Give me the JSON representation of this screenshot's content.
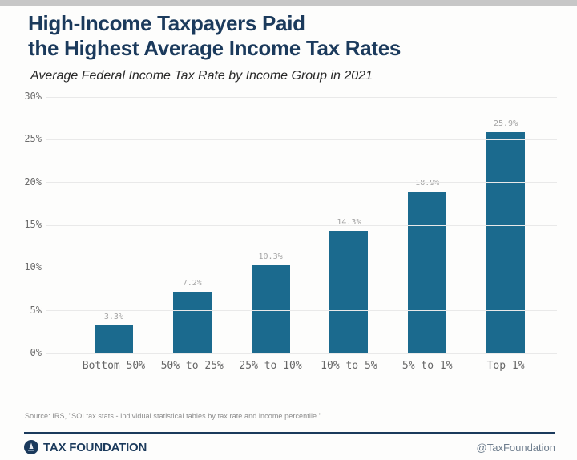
{
  "header": {
    "title_line1": "High-Income Taxpayers Paid",
    "title_line2": "the Highest Average Income Tax Rates",
    "subtitle": "Average Federal Income Tax Rate by Income Group in 2021"
  },
  "chart_data": {
    "type": "bar",
    "title": "High-Income Taxpayers Paid the Highest Average Income Tax Rates",
    "subtitle": "Average Federal Income Tax Rate by Income Group in 2021",
    "categories": [
      "Bottom 50%",
      "50% to 25%",
      "25% to 10%",
      "10% to 5%",
      "5% to 1%",
      "Top 1%"
    ],
    "values": [
      3.3,
      7.2,
      10.3,
      14.3,
      18.9,
      25.9
    ],
    "value_labels": [
      "3.3%",
      "7.2%",
      "10.3%",
      "14.3%",
      "18.9%",
      "25.9%"
    ],
    "xlabel": "",
    "ylabel": "",
    "ylim": [
      0,
      30
    ],
    "yticks": [
      0,
      5,
      10,
      15,
      20,
      25,
      30
    ],
    "ytick_labels": [
      "0%",
      "5%",
      "10%",
      "15%",
      "20%",
      "25%",
      "30%"
    ],
    "grid": true,
    "legend": false,
    "bar_color": "#1b6a8e"
  },
  "footer": {
    "source": "Source: IRS, \"SOI tax stats - individual statistical tables by tax rate and income percentile.\"",
    "logo_text": "TAX FOUNDATION",
    "handle": "@TaxFoundation"
  },
  "colors": {
    "title_navy": "#1b3a5c",
    "bar": "#1b6a8e",
    "gridline": "#e9e9e9",
    "tick_label": "#6b6b6b",
    "value_label": "#a3a3a3",
    "footer_rule": "#1b3a5c"
  }
}
